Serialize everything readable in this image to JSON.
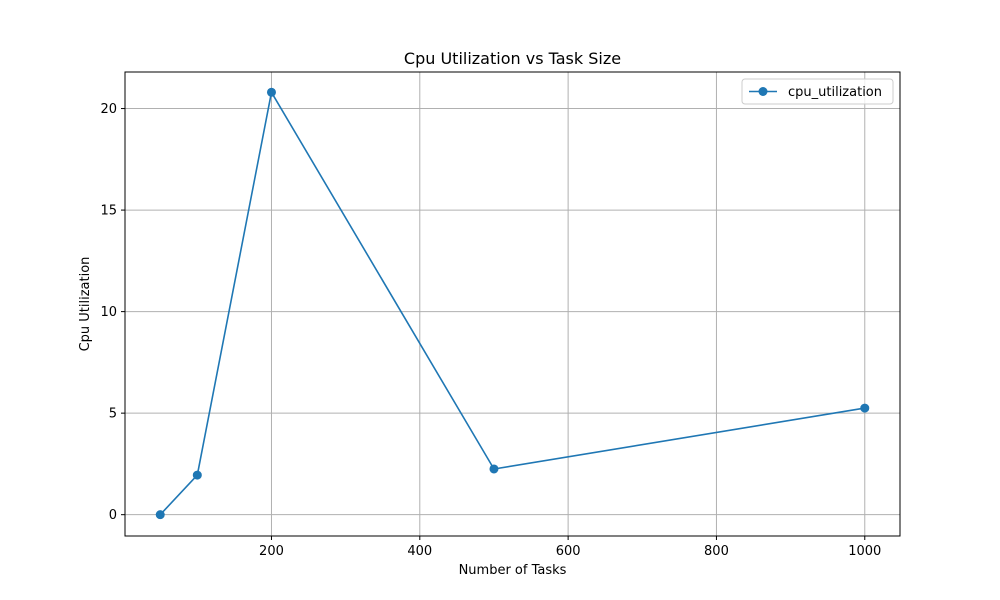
{
  "chart_data": {
    "type": "line",
    "title": "Cpu Utilization vs Task Size",
    "xlabel": "Number of Tasks",
    "ylabel": "Cpu Utilization",
    "xlim": [
      2.5,
      1047.5
    ],
    "ylim": [
      -1.05,
      21.8
    ],
    "xticks": [
      200,
      400,
      600,
      800,
      1000
    ],
    "yticks": [
      0,
      5,
      10,
      15,
      20
    ],
    "grid": true,
    "legend_position": "top-right",
    "x": [
      50,
      100,
      200,
      500,
      1000
    ],
    "series": [
      {
        "name": "cpu_utilization",
        "values": [
          0.0,
          1.95,
          20.8,
          2.25,
          5.25
        ],
        "color": "#1f77b4",
        "marker": "circle"
      }
    ]
  }
}
